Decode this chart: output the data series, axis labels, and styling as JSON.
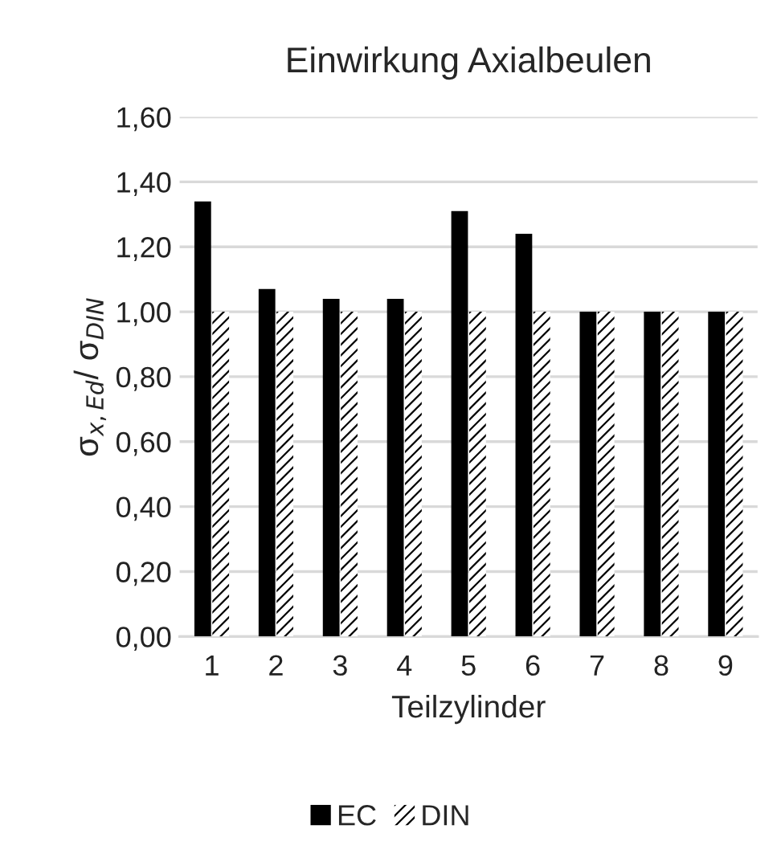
{
  "chart_data": {
    "type": "bar",
    "title": "Einwirkung Axialbeulen",
    "xlabel": "Teilzylinder",
    "ylabel": "σ$_{x,Ed}$/ σ$_{DIN}$",
    "categories": [
      "1",
      "2",
      "3",
      "4",
      "5",
      "6",
      "7",
      "8",
      "9"
    ],
    "series": [
      {
        "name": "EC",
        "color": "#000000",
        "values": [
          1.34,
          1.07,
          1.04,
          1.04,
          1.31,
          1.24,
          1.0,
          1.0,
          1.0
        ]
      },
      {
        "name": "DIN",
        "color": "#ffffff",
        "values": [
          1.0,
          1.0,
          1.0,
          1.0,
          1.0,
          1.0,
          1.0,
          1.0,
          1.0
        ]
      }
    ],
    "ylim": [
      0,
      1.6
    ],
    "yticks": [
      {
        "value": 0,
        "label": "0,00"
      },
      {
        "value": 0.2,
        "label": "0,20"
      },
      {
        "value": 0.4,
        "label": "0,40"
      },
      {
        "value": 0.6,
        "label": "0,60"
      },
      {
        "value": 0.8,
        "label": "0,80"
      },
      {
        "value": 1.0,
        "label": "1,00"
      },
      {
        "value": 1.2,
        "label": "1,20"
      },
      {
        "value": 1.4,
        "label": "1,40"
      },
      {
        "value": 1.6,
        "label": "1,60"
      }
    ],
    "grid": "y",
    "legend": "bottom"
  }
}
